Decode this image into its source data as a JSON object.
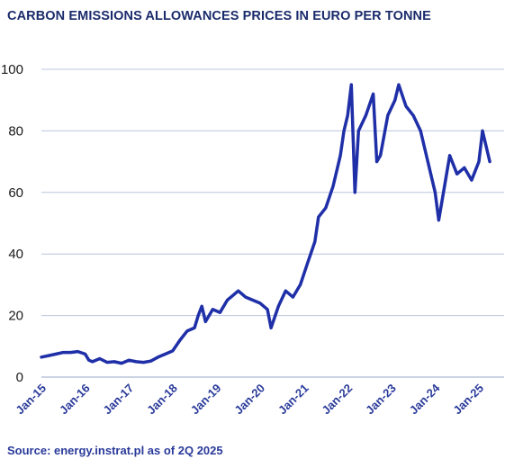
{
  "chart_title": "CARBON EMISSIONS ALLOWANCES PRICES IN EURO PER TONNE",
  "source": "Source: energy.instrat.pl as of 2Q 2025",
  "chart_data": {
    "type": "line",
    "title": "CARBON EMISSIONS ALLOWANCES PRICES IN EURO PER TONNE",
    "xlabel": "",
    "ylabel": "",
    "ylim": [
      0,
      100
    ],
    "yticks": [
      0,
      20,
      40,
      60,
      80,
      100
    ],
    "xticks": [
      "Jan-15",
      "Jan-16",
      "Jan-17",
      "Jan-18",
      "Jan-19",
      "Jan-20",
      "Jan-21",
      "Jan-22",
      "Jan-23",
      "Jan-24",
      "Jan-25"
    ],
    "grid": "horizontal",
    "line_color": "#1f2fa8",
    "series": [
      {
        "x": [
          "2015-01",
          "2015-03",
          "2015-05",
          "2015-07",
          "2015-09",
          "2015-11",
          "2016-01",
          "2016-02",
          "2016-03",
          "2016-05",
          "2016-07",
          "2016-09",
          "2016-11",
          "2017-01",
          "2017-03",
          "2017-05",
          "2017-07",
          "2017-09",
          "2017-11",
          "2018-01",
          "2018-03",
          "2018-05",
          "2018-07",
          "2018-08",
          "2018-09",
          "2018-10",
          "2018-12",
          "2019-02",
          "2019-04",
          "2019-06",
          "2019-07",
          "2019-09",
          "2019-11",
          "2020-01",
          "2020-03",
          "2020-04",
          "2020-06",
          "2020-08",
          "2020-10",
          "2020-12",
          "2021-02",
          "2021-04",
          "2021-05",
          "2021-07",
          "2021-09",
          "2021-11",
          "2021-12",
          "2022-01",
          "2022-02",
          "2022-03",
          "2022-04",
          "2022-06",
          "2022-08",
          "2022-09",
          "2022-10",
          "2022-12",
          "2023-02",
          "2023-03",
          "2023-05",
          "2023-07",
          "2023-09",
          "2023-11",
          "2024-01",
          "2024-02",
          "2024-03",
          "2024-05",
          "2024-07",
          "2024-09",
          "2024-11",
          "2025-01",
          "2025-02",
          "2025-04"
        ],
        "values": [
          6.5,
          7.0,
          7.5,
          8.0,
          8.0,
          8.3,
          7.5,
          5.5,
          5.0,
          6.0,
          4.8,
          5.0,
          4.5,
          5.5,
          5.0,
          4.8,
          5.2,
          6.5,
          7.5,
          8.5,
          12.0,
          15.0,
          16.0,
          20.0,
          23.0,
          18.0,
          22.0,
          21.0,
          25.0,
          27.0,
          28.0,
          26.0,
          25.0,
          24.0,
          22.0,
          16.0,
          23.0,
          28.0,
          26.0,
          30.0,
          37.0,
          44.0,
          52.0,
          55.0,
          62.0,
          72.0,
          80.0,
          85.0,
          95.0,
          60.0,
          80.0,
          85.0,
          92.0,
          70.0,
          72.0,
          85.0,
          90.0,
          95.0,
          88.0,
          85.0,
          80.0,
          70.0,
          60.0,
          51.0,
          58.0,
          72.0,
          66.0,
          68.0,
          64.0,
          70.0,
          80.0,
          70.0
        ]
      }
    ]
  }
}
